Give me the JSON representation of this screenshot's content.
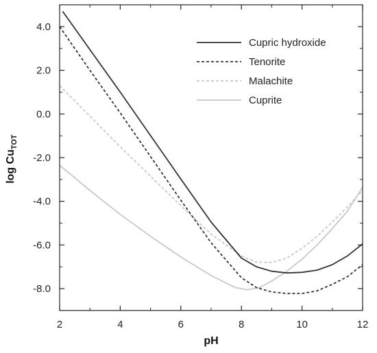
{
  "chart_data": {
    "type": "line",
    "xlabel": "pH",
    "ylabel": "log Cu",
    "ylabel_subscript": "TOT",
    "xlim": [
      2,
      12
    ],
    "ylim": [
      -9,
      5
    ],
    "x_ticks": [
      2,
      4,
      6,
      8,
      10,
      12
    ],
    "x_tick_labels": [
      "2",
      "4",
      "6",
      "8",
      "10",
      "12"
    ],
    "y_ticks": [
      4,
      2,
      0,
      -2,
      -4,
      -6,
      -8
    ],
    "y_tick_labels": [
      "4.0",
      "2.0",
      "0.0",
      "-2.0",
      "-4.0",
      "-6.0",
      "-8.0"
    ],
    "grid": false,
    "legend_position": "top-right",
    "series": [
      {
        "name": "Cupric hydroxide",
        "color": "#333333",
        "dash": "solid",
        "points": [
          [
            2.1,
            4.7
          ],
          [
            4,
            1.0
          ],
          [
            6,
            -2.98
          ],
          [
            7,
            -4.95
          ],
          [
            8,
            -6.6
          ],
          [
            8.5,
            -7.0
          ],
          [
            9,
            -7.2
          ],
          [
            9.5,
            -7.28
          ],
          [
            10,
            -7.25
          ],
          [
            10.5,
            -7.15
          ],
          [
            11,
            -6.9
          ],
          [
            11.5,
            -6.5
          ],
          [
            12,
            -5.95
          ]
        ]
      },
      {
        "name": "Tenorite",
        "color": "#333333",
        "dash": "dashed",
        "points": [
          [
            2,
            4.0
          ],
          [
            3,
            2.0
          ],
          [
            4,
            0.05
          ],
          [
            6,
            -3.95
          ],
          [
            7,
            -5.9
          ],
          [
            8,
            -7.5
          ],
          [
            8.5,
            -7.95
          ],
          [
            9,
            -8.15
          ],
          [
            9.5,
            -8.22
          ],
          [
            10,
            -8.22
          ],
          [
            10.5,
            -8.1
          ],
          [
            11,
            -7.8
          ],
          [
            11.5,
            -7.45
          ],
          [
            12,
            -6.9
          ]
        ]
      },
      {
        "name": "Malachite",
        "color": "#c8c8c8",
        "dash": "dashed",
        "points": [
          [
            2,
            1.3
          ],
          [
            4,
            -1.5
          ],
          [
            6,
            -4.2
          ],
          [
            7,
            -5.5
          ],
          [
            8,
            -6.5
          ],
          [
            8.5,
            -6.78
          ],
          [
            9,
            -6.8
          ],
          [
            9.5,
            -6.6
          ],
          [
            10,
            -6.15
          ],
          [
            10.5,
            -5.6
          ],
          [
            11,
            -4.95
          ],
          [
            11.5,
            -4.25
          ],
          [
            12,
            -3.5
          ]
        ]
      },
      {
        "name": "Cuprite",
        "color": "#c8c8c8",
        "dash": "solid",
        "points": [
          [
            2,
            -2.35
          ],
          [
            3,
            -3.5
          ],
          [
            4,
            -4.6
          ],
          [
            5,
            -5.6
          ],
          [
            6,
            -6.55
          ],
          [
            7,
            -7.4
          ],
          [
            7.8,
            -7.95
          ],
          [
            8.2,
            -8.05
          ],
          [
            8.6,
            -7.95
          ],
          [
            9,
            -7.65
          ],
          [
            9.5,
            -7.2
          ],
          [
            10,
            -6.65
          ],
          [
            10.5,
            -6.0
          ],
          [
            11,
            -5.25
          ],
          [
            11.5,
            -4.45
          ],
          [
            12,
            -3.35
          ]
        ]
      }
    ]
  }
}
